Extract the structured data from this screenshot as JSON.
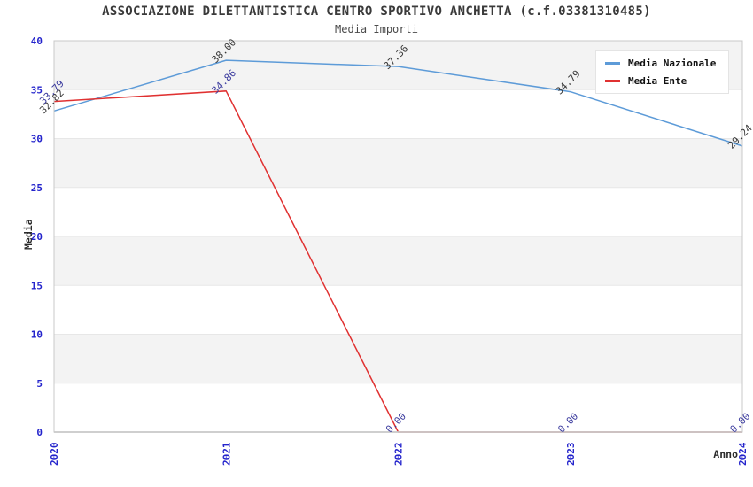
{
  "header": {
    "title": "ASSOCIAZIONE DILETTANTISTICA CENTRO SPORTIVO ANCHETTA (c.f.03381310485)",
    "subtitle": "Media Importi"
  },
  "chart_data": {
    "type": "line",
    "x": [
      "2020",
      "2021",
      "2022",
      "2023",
      "2024"
    ],
    "series": [
      {
        "name": "Media Nazionale",
        "color": "#5d9bd8",
        "label_color": "#3a3a3a",
        "values": [
          32.82,
          38.0,
          37.36,
          34.79,
          29.24
        ]
      },
      {
        "name": "Media Ente",
        "color": "#e03131",
        "label_color": "#3b3b9e",
        "values": [
          33.79,
          34.86,
          0.0,
          0.0,
          0.0
        ]
      }
    ],
    "xlabel": "Anno",
    "ylabel": "Media",
    "ylim": [
      0,
      40
    ],
    "ytick_step": 5,
    "yticks": [
      0,
      5,
      10,
      15,
      20,
      25,
      30,
      35,
      40
    ],
    "tick_label_color": "#2424cc",
    "axis_label_color": "#2b2b2b",
    "value_label_format": "two-decimals",
    "grid": "horizontal-bands",
    "legend_position": "top-right",
    "legend_entries": [
      "Media Nazionale",
      "Media Ente"
    ]
  }
}
